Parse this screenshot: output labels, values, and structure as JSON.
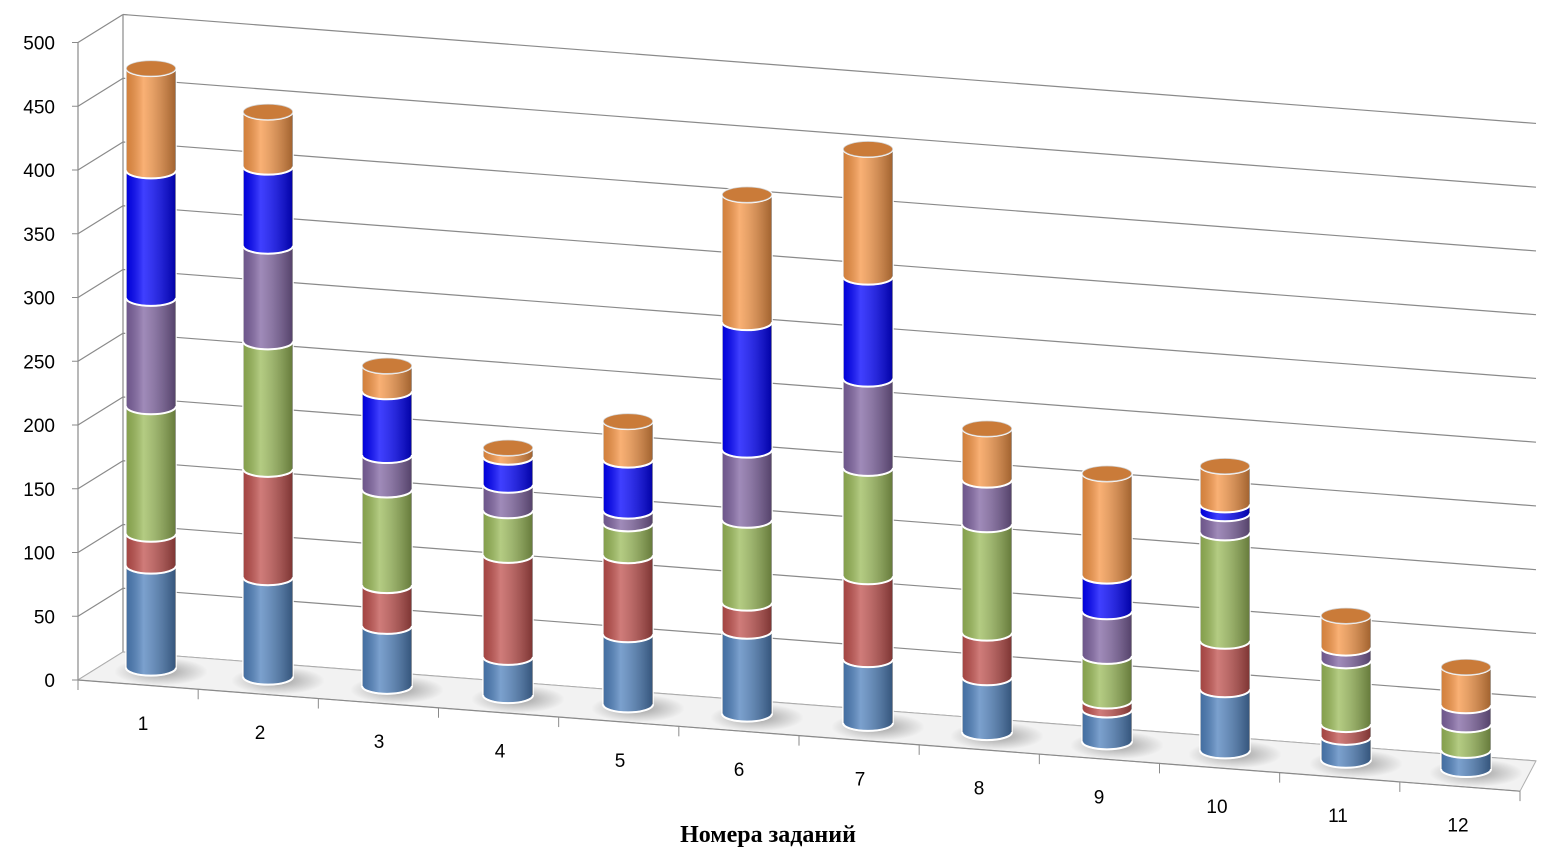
{
  "chart_data": {
    "type": "bar",
    "stacked": true,
    "style": "3d-cylinder",
    "xlabel": "Номера заданий",
    "ylabel": "",
    "ylim": [
      0,
      500
    ],
    "yticks": [
      0,
      50,
      100,
      150,
      200,
      250,
      300,
      350,
      400,
      450,
      500
    ],
    "categories": [
      "1",
      "2",
      "3",
      "4",
      "5",
      "6",
      "7",
      "8",
      "9",
      "10",
      "11",
      "12"
    ],
    "grid": true,
    "legend": "none",
    "series": [
      {
        "color": "#4F81BD",
        "values": [
          80,
          78,
          47,
          30,
          55,
          65,
          50,
          43,
          25,
          48,
          18,
          15
        ]
      },
      {
        "color": "#C0504D",
        "values": [
          25,
          85,
          32,
          80,
          62,
          22,
          65,
          35,
          7,
          38,
          10,
          0
        ]
      },
      {
        "color": "#9BBB59",
        "values": [
          100,
          100,
          75,
          35,
          25,
          65,
          85,
          85,
          35,
          85,
          50,
          20
        ]
      },
      {
        "color": "#8064A2",
        "values": [
          85,
          75,
          27,
          20,
          10,
          55,
          70,
          35,
          35,
          15,
          10,
          15
        ]
      },
      {
        "color": "#0000FF",
        "values": [
          100,
          62,
          50,
          22,
          40,
          100,
          80,
          0,
          28,
          7,
          0,
          0
        ]
      },
      {
        "color": "#F79646",
        "values": [
          80,
          43,
          20,
          7,
          30,
          100,
          100,
          40,
          80,
          30,
          25,
          30
        ]
      }
    ]
  }
}
